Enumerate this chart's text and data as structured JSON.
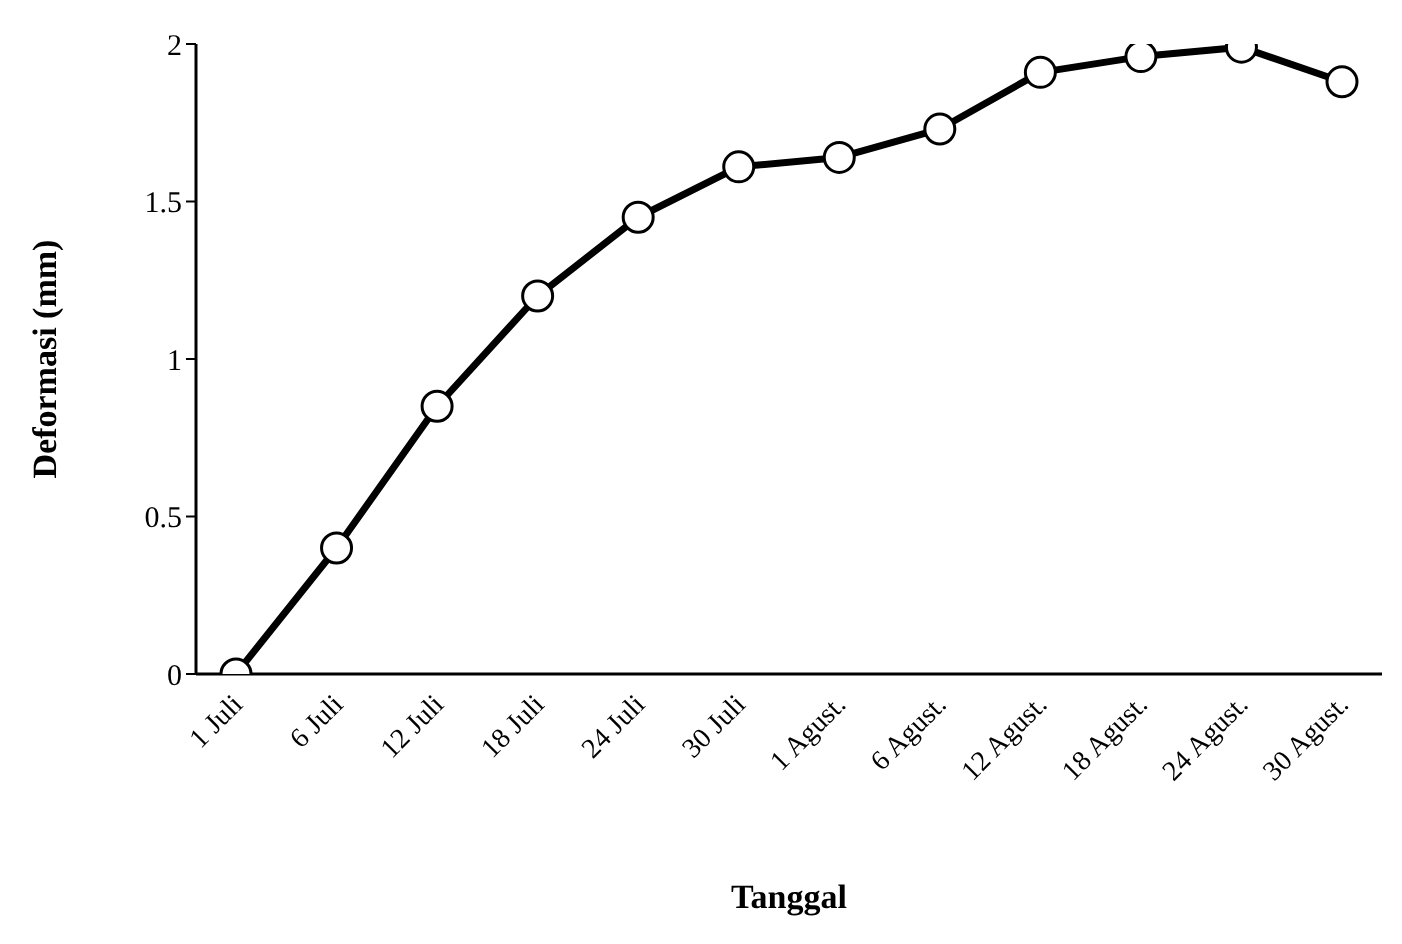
{
  "chart_data": {
    "type": "line",
    "xlabel": "Tanggal",
    "ylabel": "Deformasi (mm)",
    "categories": [
      "1 Juli",
      "6 Juli",
      "12 Juli",
      "18 Juli",
      "24 Juli",
      "30 Juli",
      "1 Agust.",
      "6 Agust.",
      "12 Agust.",
      "18 Agust.",
      "24 Agust.",
      "30 Agust."
    ],
    "series": [
      {
        "color": "#000000",
        "values": [
          0,
          0.4,
          0.85,
          1.2,
          1.45,
          1.61,
          1.64,
          1.73,
          1.91,
          1.96,
          1.99,
          1.88
        ]
      }
    ],
    "ylim": [
      0,
      2
    ],
    "yticks": [
      0,
      0.5,
      1,
      1.5,
      2
    ],
    "grid": false,
    "legend": false,
    "marker": "circle",
    "line_style": "solid"
  }
}
